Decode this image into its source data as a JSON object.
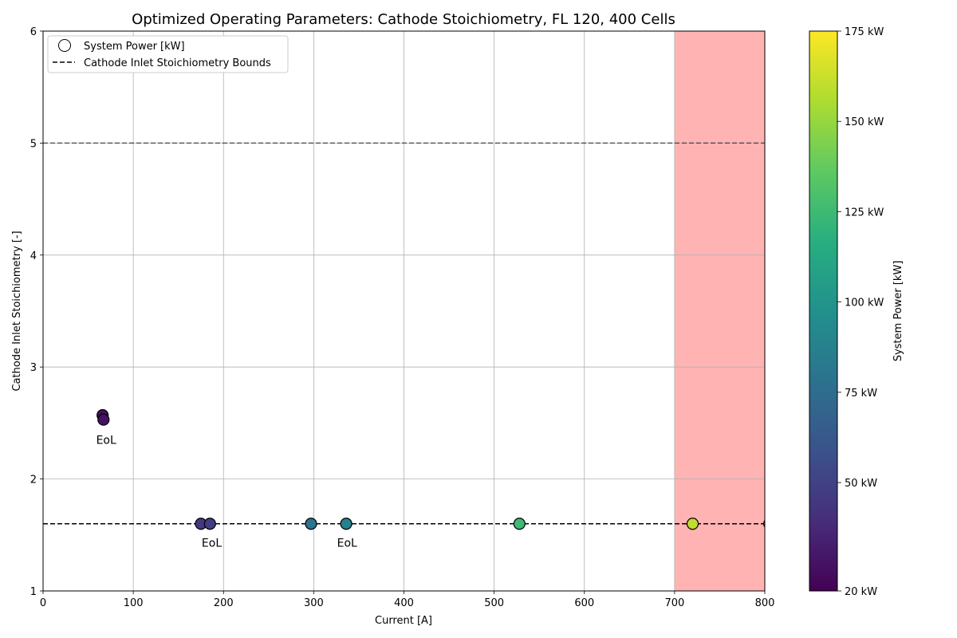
{
  "chart_data": {
    "type": "scatter",
    "title": "Optimized Operating Parameters: Cathode Stoichiometry, FL 120, 400 Cells",
    "xlabel": "Current [A]",
    "ylabel": "Cathode Inlet Stoichiometry [-]",
    "xlim": [
      0,
      800
    ],
    "ylim": [
      1,
      6
    ],
    "xticks": [
      "0",
      "100",
      "200",
      "300",
      "400",
      "500",
      "600",
      "700",
      "800"
    ],
    "yticks": [
      "1",
      "2",
      "3",
      "4",
      "5",
      "6"
    ],
    "grid": true,
    "legend_placement": "upper-left",
    "legend": {
      "marker_label": "System Power [kW]",
      "line_label": "Cathode Inlet Stoichiometry Bounds"
    },
    "bounds": {
      "lower": 1.6,
      "upper": 5.0
    },
    "shaded_region": {
      "x_from": 700,
      "x_to": 800,
      "color": "#ffb3b3"
    },
    "colorbar": {
      "label": "System Power [kW]",
      "range": [
        20,
        175
      ],
      "colormap": "viridis",
      "tick_values": [
        20,
        50,
        75,
        100,
        125,
        150,
        175
      ],
      "tick_labels": [
        "20 kW",
        "50 kW",
        "75 kW",
        "100 kW",
        "125 kW",
        "150 kW",
        "175 kW"
      ]
    },
    "points": [
      {
        "x": 66,
        "y": 2.57,
        "power": 25
      },
      {
        "x": 67,
        "y": 2.53,
        "power": 27
      },
      {
        "x": 175,
        "y": 1.6,
        "power": 45
      },
      {
        "x": 185,
        "y": 1.6,
        "power": 47
      },
      {
        "x": 297,
        "y": 1.6,
        "power": 80
      },
      {
        "x": 336,
        "y": 1.6,
        "power": 87
      },
      {
        "x": 528,
        "y": 1.6,
        "power": 125
      },
      {
        "x": 720,
        "y": 1.6,
        "power": 160
      },
      {
        "x": 805,
        "y": 1.6,
        "power": 175
      }
    ],
    "annotations": [
      {
        "text": "EoL",
        "x": 70,
        "y": 2.35
      },
      {
        "text": "EoL",
        "x": 187,
        "y": 1.43
      },
      {
        "text": "EoL",
        "x": 337,
        "y": 1.43
      }
    ]
  }
}
